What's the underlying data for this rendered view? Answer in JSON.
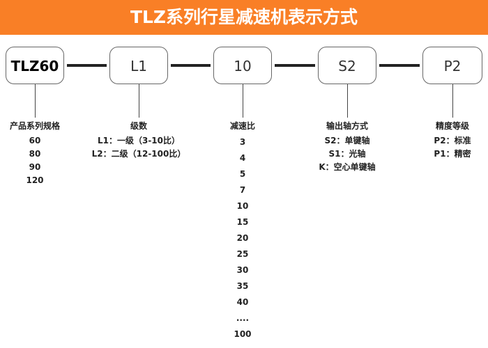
{
  "title": "TLZ系列行星减速机表示方式",
  "boxes": [
    "TLZ60",
    "L1",
    "10",
    "S2",
    "P2"
  ],
  "columns": [
    {
      "title": "产品系列规格",
      "items": [
        "60",
        "80",
        "90",
        "120"
      ]
    },
    {
      "title": "级数",
      "items": [
        "L1：一级（3-10比）",
        "L2：二级（12-100比）"
      ]
    },
    {
      "title": "减速比",
      "items": [
        "3",
        "4",
        "5",
        "7",
        "10",
        "15",
        "20",
        "25",
        "30",
        "35",
        "40",
        "....",
        "100"
      ]
    },
    {
      "title": "输出轴方式",
      "items": [
        "S2：单键轴",
        "S1：光轴",
        "K：空心单键轴"
      ]
    },
    {
      "title": "精度等级",
      "items": [
        "P2：标准",
        "P1：精密"
      ]
    }
  ],
  "colors": {
    "header": "#f97f26",
    "connector": "#222222"
  }
}
